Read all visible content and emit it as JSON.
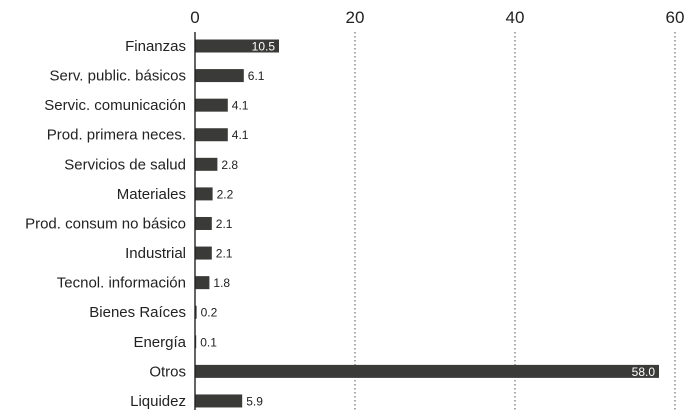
{
  "chart_data": {
    "type": "bar",
    "orientation": "horizontal",
    "categories": [
      "Finanzas",
      "Serv. public. básicos",
      "Servic. comunicación",
      "Prod. primera neces.",
      "Servicios de salud",
      "Materiales",
      "Prod. consum no básico",
      "Industrial",
      "Tecnol. información",
      "Bienes Raíces",
      "Energía",
      "Otros",
      "Liquidez"
    ],
    "values": [
      10.5,
      6.1,
      4.1,
      4.1,
      2.8,
      2.2,
      2.1,
      2.1,
      1.8,
      0.2,
      0.1,
      58.0,
      5.9
    ],
    "value_labels": [
      "10.5",
      "6.1",
      "4.1",
      "4.1",
      "2.8",
      "2.2",
      "2.1",
      "2.1",
      "1.8",
      "0.2",
      "0.1",
      "58.0",
      "5.9"
    ],
    "xlim": [
      0,
      60
    ],
    "xticks": [
      0,
      20,
      40,
      60
    ],
    "xtick_labels": [
      "0",
      "20",
      "40",
      "60"
    ],
    "x_axis_position": "top",
    "grid": "vertical-dotted",
    "bar_color": "#3a3a38"
  }
}
